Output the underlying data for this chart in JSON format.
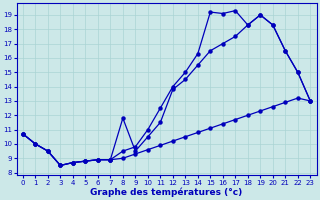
{
  "bg_color": "#cce8e8",
  "grid_color": "#aad4d4",
  "line_color": "#0000bb",
  "xlabel": "Graphe des températures (°c)",
  "xlim": [
    -0.5,
    23.5
  ],
  "ylim": [
    7.8,
    19.8
  ],
  "yticks": [
    8,
    9,
    10,
    11,
    12,
    13,
    14,
    15,
    16,
    17,
    18,
    19
  ],
  "xticks": [
    0,
    1,
    2,
    3,
    4,
    5,
    6,
    7,
    8,
    9,
    10,
    11,
    12,
    13,
    14,
    15,
    16,
    17,
    18,
    19,
    20,
    21,
    22,
    23
  ],
  "curve1_x": [
    0,
    1,
    2,
    3,
    4,
    5,
    6,
    7,
    8,
    9,
    10,
    11,
    12,
    13,
    14,
    15,
    16,
    17,
    18,
    19,
    20,
    21,
    22,
    23
  ],
  "curve1_y": [
    10.7,
    10.0,
    9.5,
    8.5,
    8.7,
    8.8,
    8.9,
    8.9,
    9.0,
    9.3,
    9.6,
    9.9,
    10.2,
    10.5,
    10.8,
    11.1,
    11.4,
    11.7,
    12.0,
    12.3,
    12.6,
    12.9,
    13.2,
    13.0
  ],
  "curve2_x": [
    0,
    1,
    2,
    3,
    4,
    5,
    6,
    7,
    8,
    9,
    10,
    11,
    12,
    13,
    14,
    15,
    16,
    17,
    18,
    19,
    20,
    21,
    22,
    23
  ],
  "curve2_y": [
    10.7,
    10.0,
    9.5,
    8.5,
    8.7,
    8.8,
    8.9,
    8.9,
    11.8,
    9.5,
    10.5,
    11.5,
    13.8,
    14.5,
    15.5,
    16.5,
    17.0,
    17.5,
    18.3,
    19.0,
    18.3,
    16.5,
    15.0,
    13.0
  ],
  "curve3_x": [
    0,
    1,
    2,
    3,
    4,
    5,
    6,
    7,
    8,
    9,
    10,
    11,
    12,
    13,
    14,
    15,
    16,
    17,
    18,
    19,
    20,
    21,
    22,
    23
  ],
  "curve3_y": [
    10.7,
    10.0,
    9.5,
    8.5,
    8.7,
    8.8,
    8.9,
    8.9,
    9.5,
    9.8,
    11.0,
    12.5,
    14.0,
    15.0,
    16.3,
    19.2,
    19.1,
    19.3,
    18.3,
    19.0,
    18.3,
    16.5,
    15.0,
    13.0
  ],
  "markersize": 2.2,
  "linewidth": 0.9
}
